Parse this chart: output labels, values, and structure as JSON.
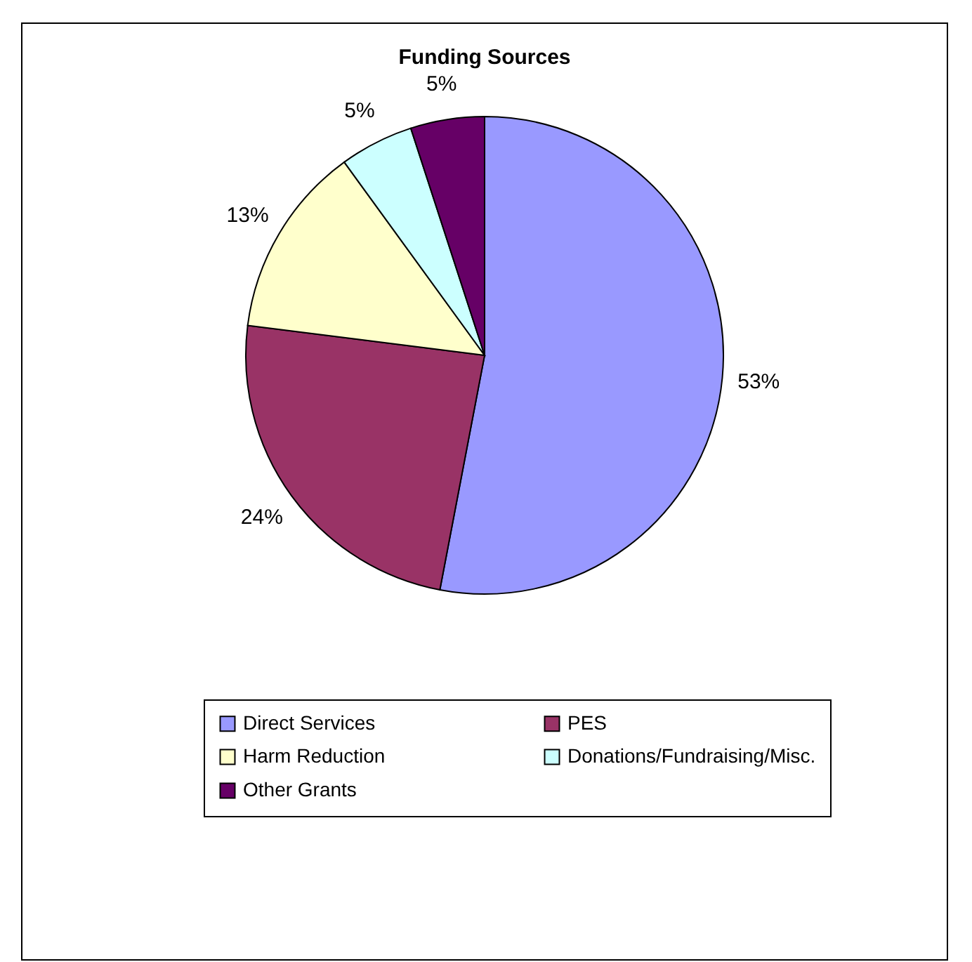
{
  "chart_data": {
    "type": "pie",
    "title": "Funding Sources",
    "categories": [
      "Direct Services",
      "PES",
      "Harm Reduction",
      "Donations/Fundraising/Misc.",
      "Other Grants"
    ],
    "values": [
      53,
      24,
      13,
      5,
      5
    ],
    "value_labels": [
      "53%",
      "24%",
      "13%",
      "5%",
      "5%"
    ],
    "colors": [
      "#9999ff",
      "#993366",
      "#ffffcc",
      "#ccffff",
      "#660066"
    ],
    "legend": "bottom"
  }
}
